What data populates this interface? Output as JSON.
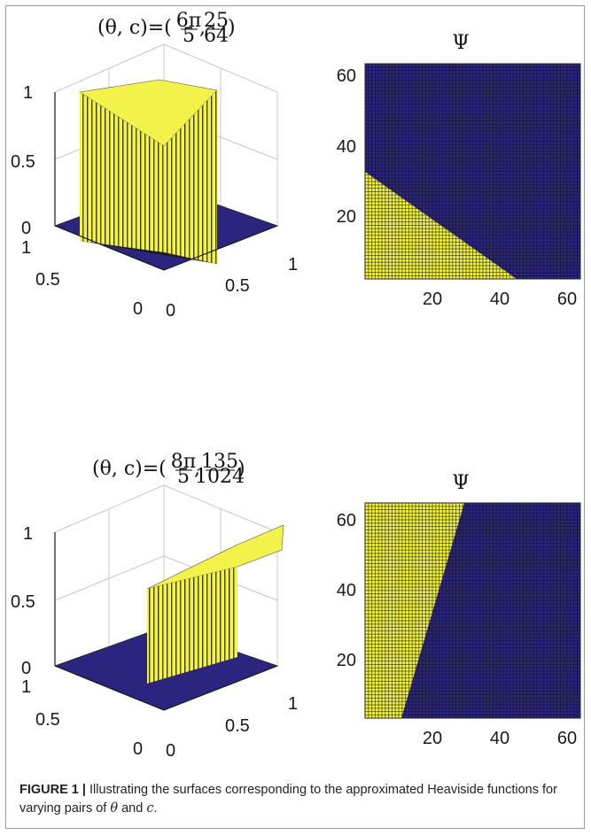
{
  "caption": {
    "label": "FIGURE 1 |",
    "text_a": " Illustrating the surfaces corresponding to the approximated Heaviside functions for varying pairs of ",
    "theta": "θ",
    "text_b": " and ",
    "c": "c",
    "text_c": "."
  },
  "colors": {
    "yellow": "#f4f542",
    "navy": "#2b2580",
    "grid_dark": "#111111",
    "axis": "#8a8a8a"
  },
  "chart_data": [
    {
      "type": "surface",
      "title": "(θ, c)=(6π/5, 25/64)",
      "title_parts": {
        "prefix": "(θ, c)=(",
        "num1": "6π",
        "den1": "5",
        "num2": "25",
        "den2": "64",
        "suffix": ")"
      },
      "z_ticks": [
        "0",
        "0.5",
        "1"
      ],
      "x_ticks": [
        "0",
        "0.5",
        "1"
      ],
      "y_ticks": [
        "0",
        "0.5",
        "1"
      ],
      "zlim": [
        0,
        1
      ],
      "xlim": [
        0,
        1
      ],
      "ylim": [
        0,
        1
      ],
      "theta": "6π/5",
      "c": "25/64"
    },
    {
      "type": "heatmap",
      "title": "Ψ",
      "x_ticks": [
        "20",
        "40",
        "60"
      ],
      "y_ticks": [
        "20",
        "40",
        "60"
      ],
      "grid": 64,
      "boundary": {
        "x_intercept": 45,
        "y_intercept": 32
      },
      "region_yellow": "lower-left",
      "region_navy": "upper-right"
    },
    {
      "type": "surface",
      "title": "(θ, c)=(8π/5, 135/1024)",
      "title_parts": {
        "prefix": "(θ, c)=(",
        "num1": "8π",
        "den1": "5",
        "num2": "135",
        "den2": "1024",
        "suffix": ")"
      },
      "z_ticks": [
        "0",
        "0.5",
        "1"
      ],
      "x_ticks": [
        "0",
        "0.5",
        "1"
      ],
      "y_ticks": [
        "0",
        "0.5",
        "1"
      ],
      "zlim": [
        0,
        1
      ],
      "xlim": [
        0,
        1
      ],
      "ylim": [
        0,
        1
      ],
      "theta": "8π/5",
      "c": "135/1024"
    },
    {
      "type": "heatmap",
      "title": "Ψ",
      "x_ticks": [
        "20",
        "40",
        "60"
      ],
      "y_ticks": [
        "20",
        "40",
        "60"
      ],
      "grid": 64,
      "boundary": {
        "bottom_x": 11,
        "top_x": 31
      },
      "region_yellow": "left",
      "region_navy": "right"
    }
  ]
}
